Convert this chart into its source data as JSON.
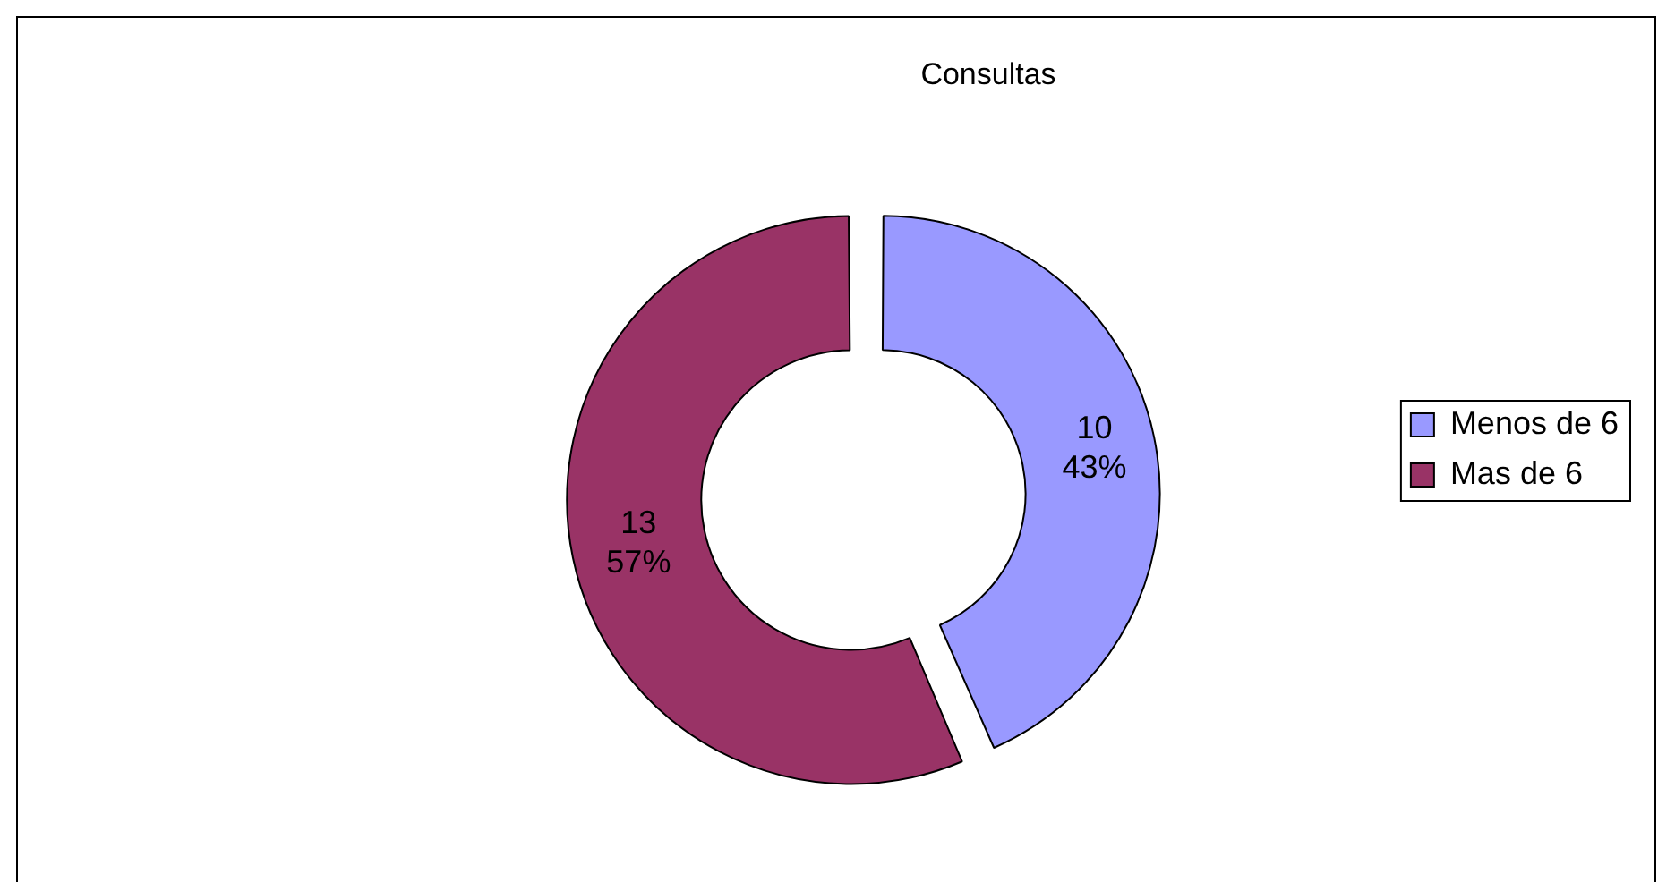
{
  "chart_data": {
    "type": "donut",
    "title": "Consultas",
    "categories": [
      "Menos de 6",
      "Mas de 6"
    ],
    "values": [
      10,
      13
    ],
    "colors": [
      "#9999ff",
      "#993366"
    ],
    "value_labels": [
      "10\n43%",
      "13\n57%"
    ],
    "legend": "right"
  }
}
